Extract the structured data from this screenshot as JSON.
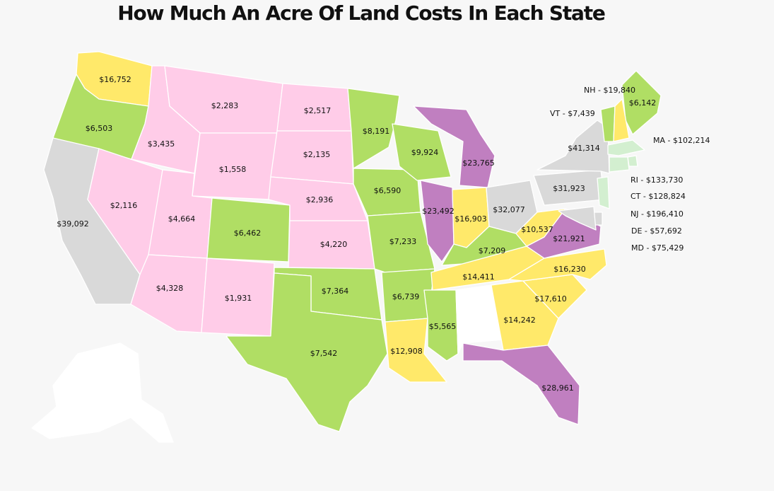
{
  "title": "How Much An Acre Of Land Costs In Each State",
  "colors": {
    "pink": "#ffcce8",
    "green": "#b0de64",
    "yellow": "#ffe96a",
    "purple": "#c07fc0",
    "gray": "#d9d9d9",
    "light_green": "#d3efd0",
    "white": "#ffffff"
  },
  "states": [
    {
      "id": "WA",
      "value": "$16,752",
      "color": "yellow"
    },
    {
      "id": "OR",
      "value": "$6,503",
      "color": "green"
    },
    {
      "id": "CA",
      "value": "$39,092",
      "color": "gray"
    },
    {
      "id": "ID",
      "value": "$3,435",
      "color": "pink"
    },
    {
      "id": "NV",
      "value": "$2,116",
      "color": "pink"
    },
    {
      "id": "MT",
      "value": "$2,283",
      "color": "pink"
    },
    {
      "id": "WY",
      "value": "$1,558",
      "color": "pink"
    },
    {
      "id": "UT",
      "value": "$4,664",
      "color": "pink"
    },
    {
      "id": "AZ",
      "value": "$4,328",
      "color": "pink"
    },
    {
      "id": "CO",
      "value": "$6,462",
      "color": "green"
    },
    {
      "id": "NM",
      "value": "$1,931",
      "color": "pink"
    },
    {
      "id": "ND",
      "value": "$2,517",
      "color": "pink"
    },
    {
      "id": "SD",
      "value": "$2,135",
      "color": "pink"
    },
    {
      "id": "NE",
      "value": "$2,936",
      "color": "pink"
    },
    {
      "id": "KS",
      "value": "$4,220",
      "color": "pink"
    },
    {
      "id": "OK",
      "value": "$7,364",
      "color": "green"
    },
    {
      "id": "TX",
      "value": "$7,542",
      "color": "green"
    },
    {
      "id": "MN",
      "value": "$8,191",
      "color": "green"
    },
    {
      "id": "IA",
      "value": "$6,590",
      "color": "green"
    },
    {
      "id": "MO",
      "value": "$7,233",
      "color": "green"
    },
    {
      "id": "AR",
      "value": "$6,739",
      "color": "green"
    },
    {
      "id": "LA",
      "value": "$12,908",
      "color": "yellow"
    },
    {
      "id": "WI",
      "value": "$9,924",
      "color": "green"
    },
    {
      "id": "IL",
      "value": "$23,492",
      "color": "purple"
    },
    {
      "id": "MS",
      "value": "$5,565",
      "color": "green"
    },
    {
      "id": "MI",
      "value": "$23,765",
      "color": "purple"
    },
    {
      "id": "IN",
      "value": "$16,903",
      "color": "yellow"
    },
    {
      "id": "KY",
      "value": "$7,209",
      "color": "green"
    },
    {
      "id": "TN",
      "value": "$14,411",
      "color": "yellow"
    },
    {
      "id": "AL",
      "value": "",
      "color": "white"
    },
    {
      "id": "OH",
      "value": "$32,077",
      "color": "gray"
    },
    {
      "id": "GA",
      "value": "$14,242",
      "color": "yellow"
    },
    {
      "id": "FL",
      "value": "$28,961",
      "color": "purple"
    },
    {
      "id": "SC",
      "value": "$17,610",
      "color": "yellow"
    },
    {
      "id": "NC",
      "value": "$16,230",
      "color": "yellow"
    },
    {
      "id": "VA",
      "value": "$21,921",
      "color": "purple"
    },
    {
      "id": "WV",
      "value": "$10,537",
      "color": "yellow"
    },
    {
      "id": "PA",
      "value": "$31,923",
      "color": "gray"
    },
    {
      "id": "NY",
      "value": "$41,314",
      "color": "gray"
    },
    {
      "id": "ME",
      "value": "$6,142",
      "color": "green"
    },
    {
      "id": "VT",
      "value": "",
      "color": "green"
    },
    {
      "id": "NH",
      "value": "",
      "color": "yellow"
    },
    {
      "id": "MA",
      "value": "",
      "color": "light_green"
    },
    {
      "id": "RI",
      "value": "",
      "color": "light_green"
    },
    {
      "id": "CT",
      "value": "",
      "color": "light_green"
    },
    {
      "id": "NJ",
      "value": "",
      "color": "light_green"
    },
    {
      "id": "DE",
      "value": "",
      "color": "gray"
    },
    {
      "id": "MD",
      "value": "",
      "color": "gray"
    },
    {
      "id": "AK",
      "value": "",
      "color": "white"
    }
  ],
  "side_labels": [
    {
      "id": "NH",
      "text": "NH - $19,840"
    },
    {
      "id": "VT",
      "text": "VT - $7,439"
    },
    {
      "id": "MA",
      "text": "MA - $102,214"
    },
    {
      "id": "RI",
      "text": "RI - $133,730"
    },
    {
      "id": "CT",
      "text": "CT - $128,824"
    },
    {
      "id": "NJ",
      "text": "NJ - $196,410"
    },
    {
      "id": "DE",
      "text": "DE - $57,692"
    },
    {
      "id": "MD",
      "text": "MD - $75,429"
    }
  ]
}
